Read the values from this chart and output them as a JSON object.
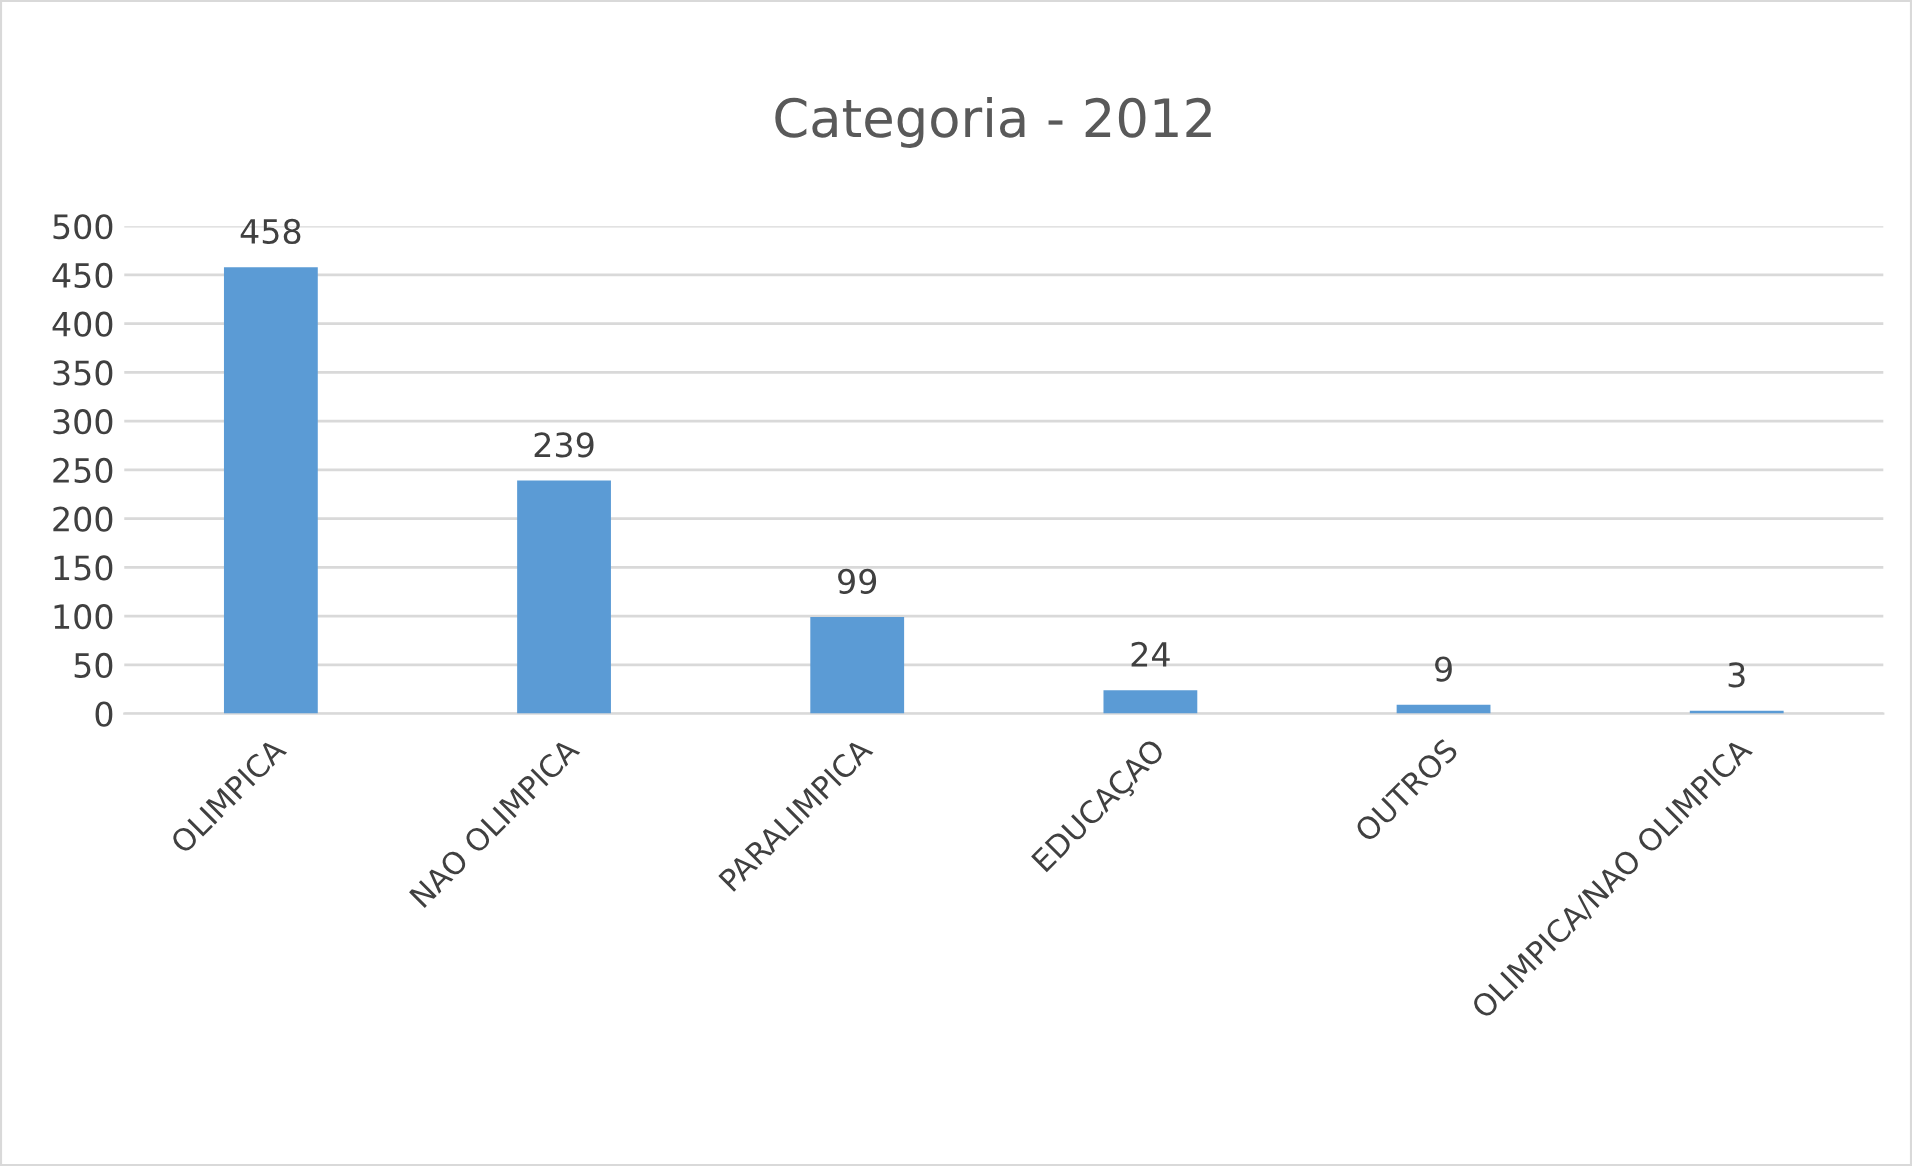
{
  "chart_data": {
    "type": "bar",
    "title": "Categoria - 2012",
    "categories": [
      "OLIMPICA",
      "NAO OLIMPICA",
      "PARALIMPICA",
      "EDUCAÇAO",
      "OUTROS",
      "OLIMPICA/NAO OLIMPICA"
    ],
    "values": [
      458,
      239,
      99,
      24,
      9,
      3
    ],
    "color": "#5b9bd5",
    "ylim": [
      0,
      500
    ],
    "yticks": [
      0,
      50,
      100,
      150,
      200,
      250,
      300,
      350,
      400,
      450,
      500
    ],
    "grid": "y",
    "data_labels": true,
    "legend": false
  }
}
